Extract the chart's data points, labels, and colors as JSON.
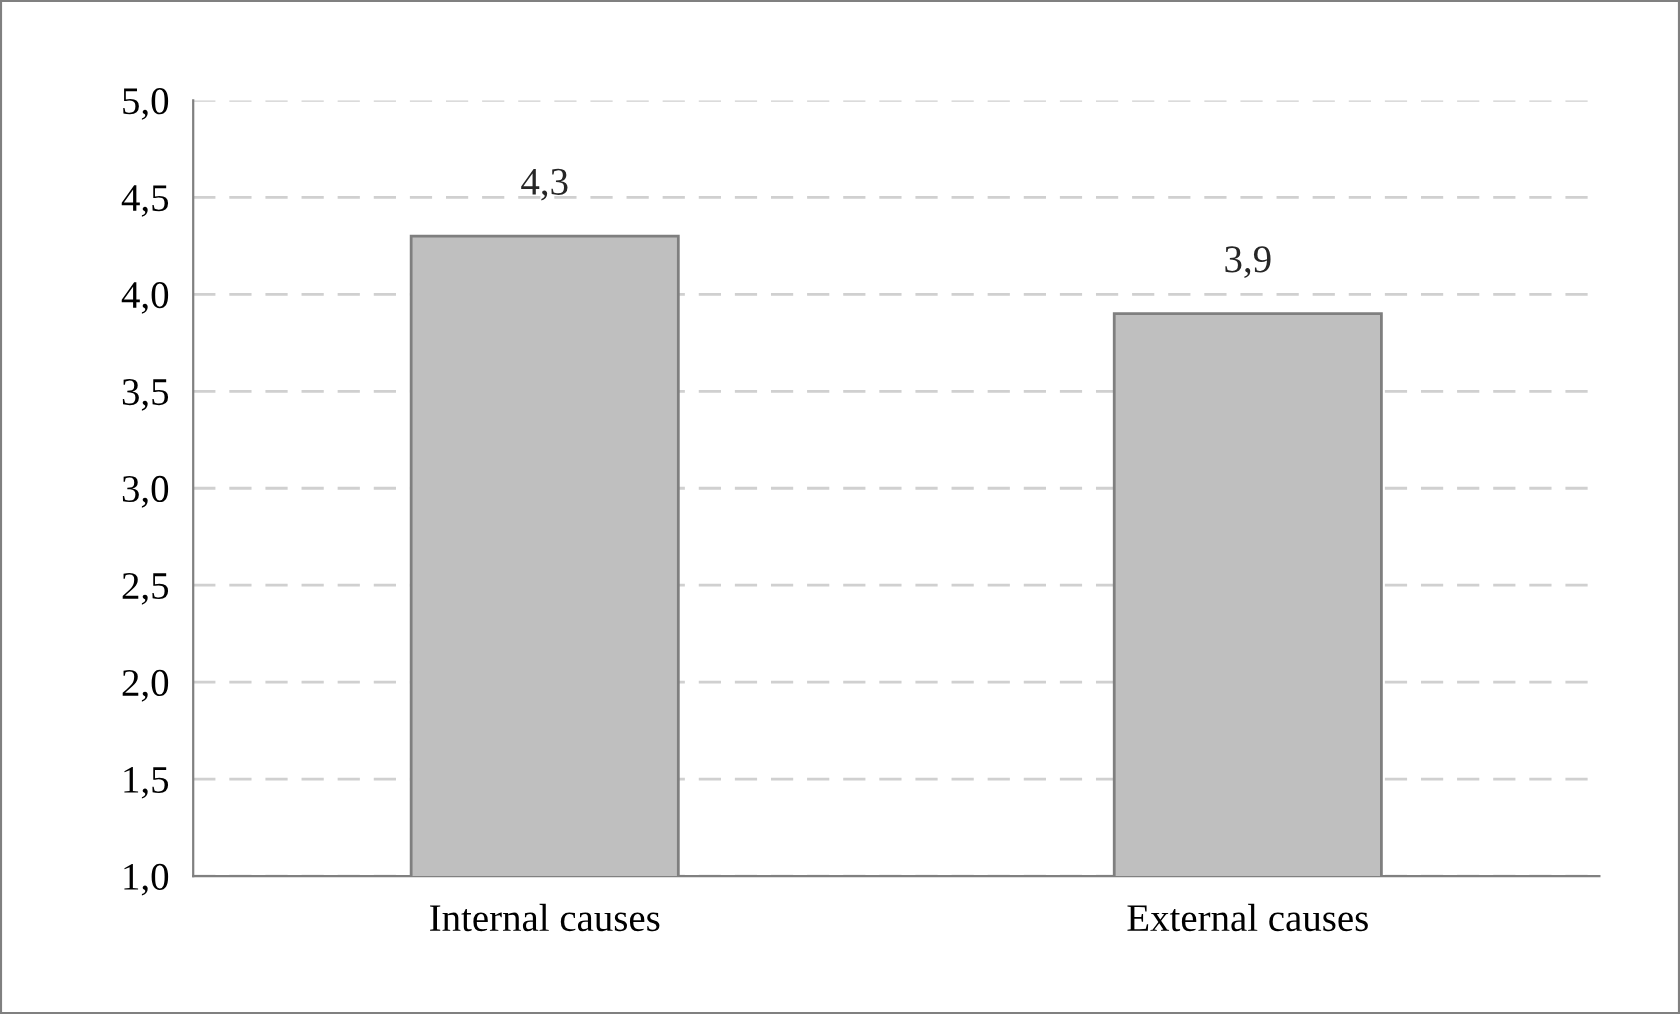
{
  "chart_data": {
    "type": "bar",
    "categories": [
      "Internal causes",
      "External causes"
    ],
    "values": [
      4.3,
      3.9
    ],
    "value_labels": [
      "4,3",
      "3,9"
    ],
    "color": "#bfbfbf",
    "ylim": [
      1.0,
      5.0
    ],
    "yticks": [
      {
        "value": 1.0,
        "label": "1,0"
      },
      {
        "value": 1.5,
        "label": "1,5"
      },
      {
        "value": 2.0,
        "label": "2,0"
      },
      {
        "value": 2.5,
        "label": "2,5"
      },
      {
        "value": 3.0,
        "label": "3,0"
      },
      {
        "value": 3.5,
        "label": "3,5"
      },
      {
        "value": 4.0,
        "label": "4,0"
      },
      {
        "value": 4.5,
        "label": "4,5"
      },
      {
        "value": 5.0,
        "label": "5,0"
      }
    ],
    "grid": "y",
    "legend": false
  }
}
